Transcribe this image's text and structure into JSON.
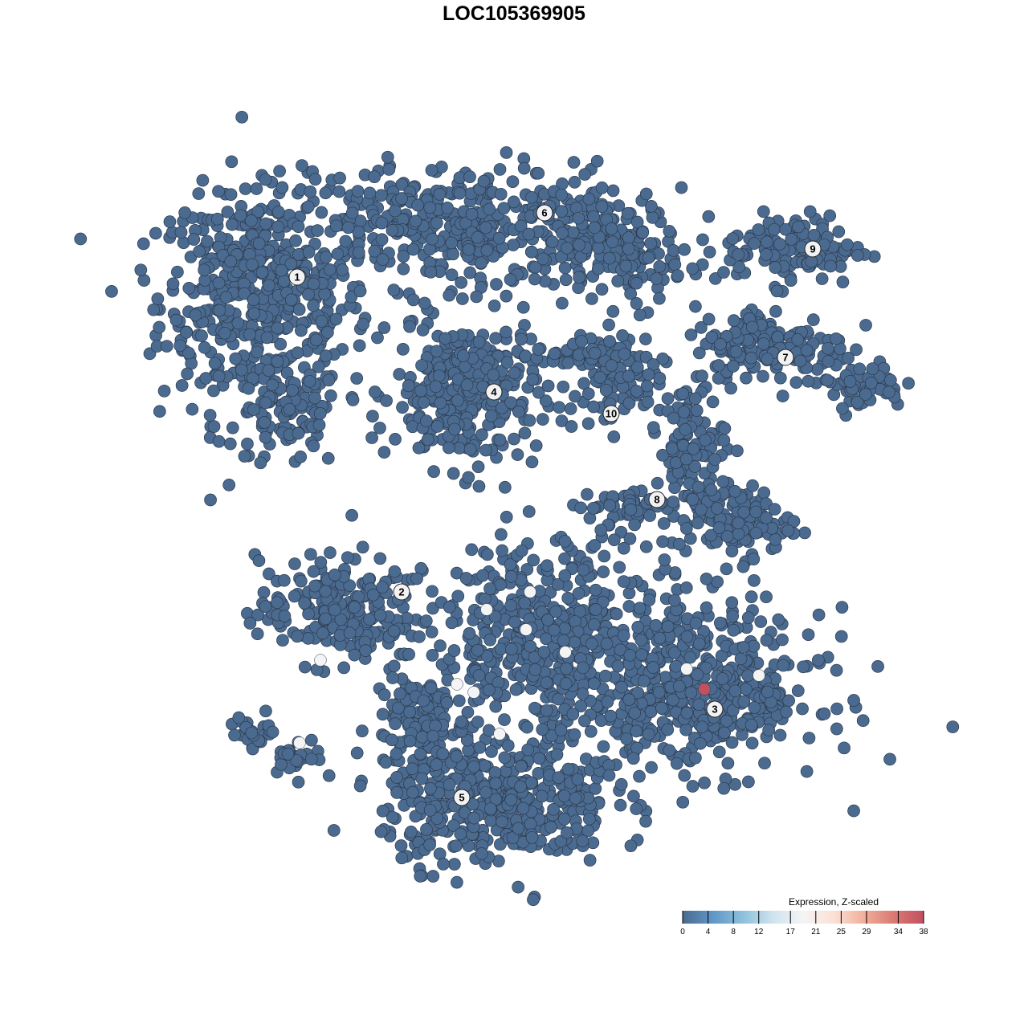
{
  "chart_data": {
    "type": "scatter",
    "title": "LOC105369905",
    "xlabel": "",
    "ylabel": "",
    "axes_visible": false,
    "grid": false,
    "xlim": [
      -64,
      64
    ],
    "ylim": [
      -64,
      64
    ],
    "point_color_default": "#4b6a8f",
    "point_outline": "#2b3a4d",
    "clusters": [
      {
        "label": "1",
        "center": [
          -27,
          29.5
        ],
        "blobs": [
          [
            -31,
            26,
            12,
            13,
            380
          ],
          [
            -28,
            12,
            6,
            6,
            90
          ],
          [
            -35,
            30,
            9,
            8,
            120
          ]
        ]
      },
      {
        "label": "6",
        "center": [
          3.8,
          37.5
        ],
        "blobs": [
          [
            -8,
            36,
            20,
            7,
            420
          ],
          [
            12,
            34,
            8,
            5,
            120
          ],
          [
            16,
            30,
            6,
            4,
            40
          ]
        ]
      },
      {
        "label": "4",
        "center": [
          -2.5,
          15.2
        ],
        "blobs": [
          [
            -6,
            15,
            8,
            8.5,
            300
          ]
        ]
      },
      {
        "label": "10",
        "center": [
          12.1,
          12.5
        ],
        "blobs": [
          [
            12,
            16,
            6,
            5,
            80
          ],
          [
            8,
            20,
            5,
            2,
            40
          ]
        ]
      },
      {
        "label": "9",
        "center": [
          37.2,
          33
        ],
        "blobs": [
          [
            35,
            33,
            8,
            4,
            120
          ]
        ]
      },
      {
        "label": "7",
        "center": [
          33.8,
          19.5
        ],
        "blobs": [
          [
            32,
            21,
            9,
            4.5,
            160
          ],
          [
            43,
            16,
            5,
            2.5,
            60
          ]
        ]
      },
      {
        "label": "8",
        "center": [
          17.8,
          1.8
        ],
        "blobs": [
          [
            22,
            8,
            4,
            7,
            100
          ],
          [
            28,
            -1,
            6,
            4,
            110
          ],
          [
            14,
            1,
            6,
            2,
            50
          ]
        ]
      },
      {
        "label": "2",
        "center": [
          -14,
          -9.7
        ],
        "blobs": [
          [
            -22,
            -12,
            9,
            6,
            220
          ],
          [
            -32,
            -27,
            3,
            2,
            25
          ],
          [
            -27,
            -30,
            3,
            2,
            25
          ]
        ]
      },
      {
        "label": "5",
        "center": [
          -6.5,
          -35.3
        ],
        "blobs": [
          [
            -2,
            -36,
            13,
            7,
            420
          ],
          [
            -12,
            -26,
            5,
            6,
            120
          ]
        ]
      },
      {
        "label": "3",
        "center": [
          25,
          -24.3
        ],
        "blobs": [
          [
            24,
            -22,
            13,
            9,
            420
          ],
          [
            6,
            -16,
            15,
            12,
            500
          ]
        ]
      }
    ],
    "highlighted_points": [
      {
        "x": 2.0,
        "y": -9.7,
        "value": 21
      },
      {
        "x": -3.4,
        "y": -11.9,
        "value": 21
      },
      {
        "x": 1.5,
        "y": -14.4,
        "value": 21
      },
      {
        "x": 6.4,
        "y": -17.2,
        "value": 21
      },
      {
        "x": -24.1,
        "y": -18.2,
        "value": 21
      },
      {
        "x": -7.1,
        "y": -21.2,
        "value": 21
      },
      {
        "x": -5.0,
        "y": -22.2,
        "value": 21
      },
      {
        "x": -1.8,
        "y": -27.4,
        "value": 21
      },
      {
        "x": -26.7,
        "y": -28.5,
        "value": 21
      },
      {
        "x": 21.5,
        "y": -19.3,
        "value": 21
      },
      {
        "x": 30.5,
        "y": -20.1,
        "value": 21
      },
      {
        "x": 23.7,
        "y": -21.8,
        "value": 38
      }
    ],
    "legend": {
      "title": "Expression, Z-scaled",
      "placement": "bottom-right",
      "range": [
        0,
        38
      ],
      "ticks": [
        "0",
        "4",
        "8",
        "12",
        "17",
        "21",
        "25",
        "29",
        "34",
        "38"
      ],
      "colors": [
        "#4b6a8f",
        "#5f97c6",
        "#8cc1dc",
        "#cfe3ee",
        "#f4f4f4",
        "#fbe2d6",
        "#f1b09b",
        "#d97a74",
        "#c2505f"
      ]
    }
  }
}
